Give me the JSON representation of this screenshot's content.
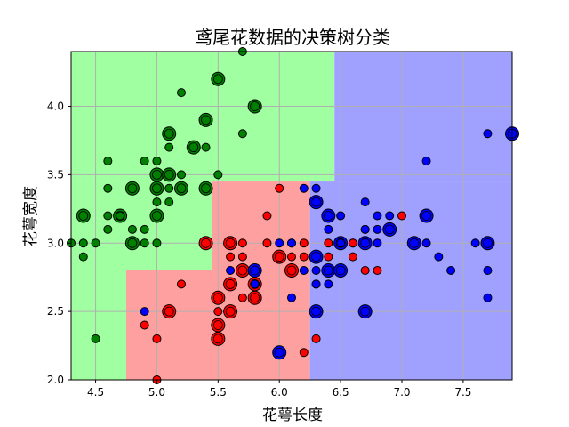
{
  "chart_data": {
    "type": "scatter",
    "title": "鸢尾花数据的决策树分类",
    "xlabel": "花萼长度",
    "ylabel": "花萼宽度",
    "xlim": [
      4.3,
      7.9
    ],
    "ylim": [
      2.0,
      4.4
    ],
    "grid": true,
    "x_ticks": [
      4.5,
      5.0,
      5.5,
      6.0,
      6.5,
      7.0,
      7.5
    ],
    "x_tick_labels": [
      "4.5",
      "5.0",
      "5.5",
      "6.0",
      "6.5",
      "7.0",
      "7.5"
    ],
    "y_ticks": [
      2.0,
      2.5,
      3.0,
      3.5,
      4.0
    ],
    "y_tick_labels": [
      "2.0",
      "2.5",
      "3.0",
      "3.5",
      "4.0"
    ],
    "colors": {
      "region_0": "#a0ffa0",
      "region_1": "#ffa0a0",
      "region_2": "#a0a0ff",
      "point_0": "#008000",
      "point_1": "#ff0000",
      "point_2": "#0000ff",
      "edge": "#000000",
      "grid": "#b0b0b0"
    },
    "regions": [
      {
        "class": 0,
        "x": [
          4.3,
          6.45
        ],
        "y": [
          3.45,
          4.4
        ]
      },
      {
        "class": 0,
        "x": [
          4.3,
          5.45
        ],
        "y": [
          2.8,
          3.45
        ]
      },
      {
        "class": 0,
        "x": [
          4.3,
          4.75
        ],
        "y": [
          2.0,
          2.8
        ]
      },
      {
        "class": 1,
        "x": [
          4.75,
          5.45
        ],
        "y": [
          2.0,
          2.8
        ]
      },
      {
        "class": 1,
        "x": [
          5.45,
          6.25
        ],
        "y": [
          2.0,
          3.45
        ]
      },
      {
        "class": 2,
        "x": [
          6.45,
          7.9
        ],
        "y": [
          3.45,
          4.4
        ]
      },
      {
        "class": 2,
        "x": [
          6.25,
          7.9
        ],
        "y": [
          2.0,
          3.45
        ]
      }
    ],
    "series": [
      {
        "class": 0,
        "points": [
          [
            4.3,
            3.0,
            1
          ],
          [
            4.4,
            2.9,
            1
          ],
          [
            4.4,
            3.0,
            1
          ],
          [
            4.4,
            3.2,
            2
          ],
          [
            4.5,
            2.3,
            1
          ],
          [
            4.6,
            3.1,
            1
          ],
          [
            4.6,
            3.2,
            1
          ],
          [
            4.6,
            3.4,
            1
          ],
          [
            4.6,
            3.6,
            1
          ],
          [
            4.7,
            3.2,
            2
          ],
          [
            4.8,
            3.0,
            2
          ],
          [
            4.8,
            3.1,
            1
          ],
          [
            4.8,
            3.4,
            2
          ],
          [
            4.9,
            3.0,
            1
          ],
          [
            4.9,
            3.1,
            1
          ],
          [
            4.9,
            3.6,
            1
          ],
          [
            5.0,
            3.0,
            1
          ],
          [
            5.0,
            3.2,
            2
          ],
          [
            5.0,
            3.3,
            1
          ],
          [
            5.0,
            3.4,
            2
          ],
          [
            5.0,
            3.5,
            2
          ],
          [
            5.0,
            3.6,
            1
          ],
          [
            5.1,
            3.3,
            1
          ],
          [
            5.1,
            3.4,
            1
          ],
          [
            5.1,
            3.5,
            2
          ],
          [
            5.1,
            3.7,
            1
          ],
          [
            5.1,
            3.8,
            2
          ],
          [
            5.2,
            3.4,
            2
          ],
          [
            5.2,
            3.5,
            1
          ],
          [
            5.2,
            4.1,
            1
          ],
          [
            5.3,
            3.7,
            2
          ],
          [
            5.4,
            3.4,
            2
          ],
          [
            5.4,
            3.7,
            1
          ],
          [
            5.4,
            3.9,
            2
          ],
          [
            5.5,
            3.5,
            1
          ],
          [
            5.5,
            4.2,
            2
          ],
          [
            5.7,
            3.8,
            1
          ],
          [
            5.7,
            4.4,
            1
          ],
          [
            5.8,
            4.0,
            2
          ],
          [
            4.5,
            3.0,
            1
          ],
          [
            4.7,
            3.2,
            1
          ]
        ]
      },
      {
        "class": 1,
        "points": [
          [
            4.9,
            2.4,
            1
          ],
          [
            5.0,
            2.0,
            1
          ],
          [
            5.0,
            2.3,
            1
          ],
          [
            5.1,
            2.5,
            2
          ],
          [
            5.2,
            2.7,
            1
          ],
          [
            5.4,
            3.0,
            2
          ],
          [
            5.5,
            2.3,
            2
          ],
          [
            5.5,
            2.4,
            2
          ],
          [
            5.5,
            2.5,
            1
          ],
          [
            5.5,
            2.6,
            2
          ],
          [
            5.6,
            2.5,
            2
          ],
          [
            5.6,
            2.7,
            2
          ],
          [
            5.6,
            2.9,
            1
          ],
          [
            5.6,
            3.0,
            2
          ],
          [
            5.7,
            2.6,
            1
          ],
          [
            5.7,
            2.8,
            2
          ],
          [
            5.7,
            2.9,
            1
          ],
          [
            5.7,
            3.0,
            1
          ],
          [
            5.8,
            2.6,
            2
          ],
          [
            5.8,
            2.7,
            2
          ],
          [
            5.9,
            3.0,
            1
          ],
          [
            5.9,
            3.2,
            1
          ],
          [
            6.0,
            2.2,
            1
          ],
          [
            6.0,
            2.9,
            2
          ],
          [
            6.0,
            3.4,
            1
          ],
          [
            6.1,
            2.8,
            2
          ],
          [
            6.1,
            2.9,
            1
          ],
          [
            6.1,
            3.0,
            1
          ],
          [
            6.2,
            2.2,
            1
          ],
          [
            6.2,
            2.9,
            1
          ],
          [
            6.2,
            3.0,
            1
          ],
          [
            6.3,
            2.3,
            1
          ],
          [
            6.3,
            2.5,
            1
          ],
          [
            6.3,
            3.3,
            1
          ],
          [
            6.4,
            2.9,
            1
          ],
          [
            6.4,
            3.2,
            1
          ],
          [
            6.5,
            2.8,
            1
          ],
          [
            6.6,
            2.9,
            1
          ],
          [
            6.6,
            3.0,
            1
          ],
          [
            6.7,
            2.8,
            1
          ],
          [
            6.7,
            3.0,
            1
          ],
          [
            6.8,
            2.8,
            1
          ],
          [
            7.0,
            3.2,
            1
          ],
          [
            6.4,
            3.0,
            1
          ],
          [
            6.4,
            2.8,
            1
          ],
          [
            6.7,
            3.1,
            1
          ],
          [
            6.6,
            3.0,
            1
          ],
          [
            6.3,
            2.7,
            1
          ]
        ]
      },
      {
        "class": 2,
        "points": [
          [
            4.9,
            2.5,
            1
          ],
          [
            5.6,
            2.8,
            1
          ],
          [
            5.8,
            2.7,
            1
          ],
          [
            5.8,
            2.8,
            2
          ],
          [
            6.0,
            2.2,
            2
          ],
          [
            6.0,
            3.0,
            1
          ],
          [
            6.1,
            2.6,
            1
          ],
          [
            6.1,
            3.0,
            1
          ],
          [
            6.2,
            2.8,
            1
          ],
          [
            6.2,
            3.4,
            1
          ],
          [
            6.3,
            2.5,
            2
          ],
          [
            6.3,
            2.7,
            1
          ],
          [
            6.3,
            2.8,
            1
          ],
          [
            6.3,
            2.9,
            2
          ],
          [
            6.3,
            3.3,
            2
          ],
          [
            6.3,
            3.4,
            1
          ],
          [
            6.4,
            2.7,
            1
          ],
          [
            6.4,
            2.8,
            2
          ],
          [
            6.4,
            3.1,
            1
          ],
          [
            6.4,
            3.2,
            2
          ],
          [
            6.5,
            2.8,
            2
          ],
          [
            6.5,
            3.0,
            2
          ],
          [
            6.5,
            3.2,
            1
          ],
          [
            6.7,
            2.5,
            2
          ],
          [
            6.7,
            3.0,
            2
          ],
          [
            6.7,
            3.1,
            1
          ],
          [
            6.7,
            3.3,
            1
          ],
          [
            6.8,
            3.0,
            1
          ],
          [
            6.8,
            3.2,
            1
          ],
          [
            6.9,
            3.1,
            2
          ],
          [
            6.9,
            3.2,
            1
          ],
          [
            7.1,
            3.0,
            2
          ],
          [
            7.2,
            3.0,
            1
          ],
          [
            7.2,
            3.2,
            2
          ],
          [
            7.2,
            3.6,
            1
          ],
          [
            7.3,
            2.9,
            1
          ],
          [
            7.4,
            2.8,
            1
          ],
          [
            7.6,
            3.0,
            1
          ],
          [
            7.7,
            2.6,
            1
          ],
          [
            7.7,
            2.8,
            1
          ],
          [
            7.7,
            3.0,
            2
          ],
          [
            7.7,
            3.8,
            1
          ],
          [
            7.9,
            3.8,
            2
          ],
          [
            6.8,
            3.1,
            1
          ],
          [
            6.5,
            3.0,
            1
          ]
        ]
      }
    ]
  }
}
